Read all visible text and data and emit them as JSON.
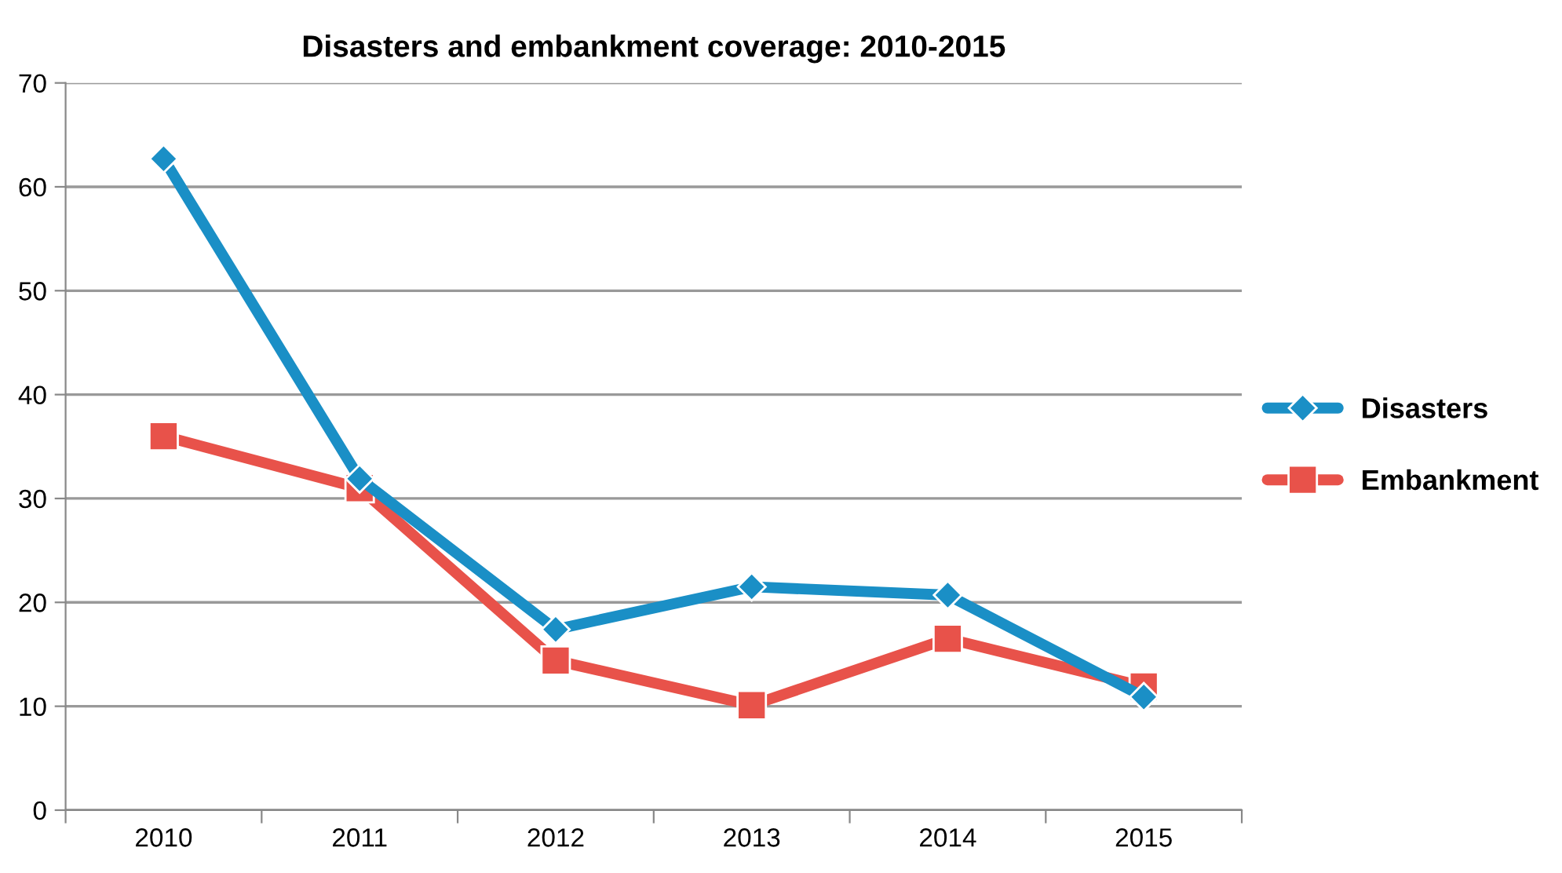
{
  "chart_data": {
    "type": "line",
    "title": "Disasters and embankment coverage: 2010-2015",
    "categories": [
      "2010",
      "2011",
      "2012",
      "2013",
      "2014",
      "2015"
    ],
    "series": [
      {
        "name": "Disasters",
        "color": "#1a8fc6",
        "marker": "diamond",
        "values": [
          62.7,
          31.9,
          17.4,
          21.5,
          20.7,
          10.9
        ]
      },
      {
        "name": "Embankment",
        "color": "#e8524a",
        "marker": "square",
        "values": [
          36,
          31,
          14.4,
          10.1,
          16.5,
          11.9
        ]
      }
    ],
    "ylim": [
      0,
      70
    ],
    "yticks": [
      0,
      10,
      20,
      30,
      40,
      50,
      60,
      70
    ],
    "grid": "y",
    "legend": "right",
    "line_style": "solid"
  }
}
